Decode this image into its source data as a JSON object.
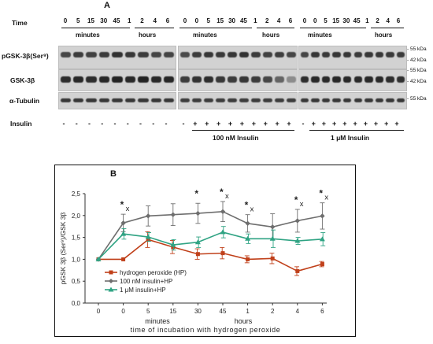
{
  "panel_a": {
    "letter": "A",
    "time_label": "Time",
    "time_groups": [
      [
        "0",
        "5",
        "15",
        "30",
        "45",
        "1",
        "2",
        "4",
        "6"
      ],
      [
        "0",
        "0",
        "5",
        "15",
        "30",
        "45",
        "1",
        "2",
        "4",
        "6"
      ],
      [
        "0",
        "0",
        "5",
        "15",
        "30",
        "45",
        "1",
        "2",
        "4",
        "6"
      ]
    ],
    "minutes_label": "minutes",
    "hours_label": "hours",
    "row_labels": [
      "pGSK-3β(Ser⁹)",
      "GSK-3β",
      "α-Tubulin"
    ],
    "kda_labels": [
      "- 55 kDa",
      "- 42 kDa",
      "- 55 kDa",
      "- 42 kDa",
      "- 55 kDa"
    ],
    "insulin_label": "Insulin",
    "insulin_signs": [
      [
        "-",
        "-",
        "-",
        "-",
        "-",
        "-",
        "-",
        "-",
        "-"
      ],
      [
        "-",
        "+",
        "+",
        "+",
        "+",
        "+",
        "+",
        "+",
        "+",
        "+"
      ],
      [
        "-",
        "+",
        "+",
        "+",
        "+",
        "+",
        "+",
        "+",
        "+",
        "+"
      ]
    ],
    "condition_labels": [
      "100 nM Insulin",
      "1 μM Insulin"
    ]
  },
  "panel_b": {
    "letter": "B"
  },
  "chart_data": {
    "type": "line",
    "categories": [
      "0",
      "0",
      "5",
      "15",
      "30",
      "45",
      "1",
      "2",
      "4",
      "6"
    ],
    "xlabel_line1": "minutes",
    "xlabel_hours": "hours",
    "xlabel_line2": "time of incubation with hydrogen peroxide",
    "ylabel": "pGSK 3β (Ser⁹)/GSK 3β",
    "ylim": [
      0,
      2.5
    ],
    "yticks": [
      "0,0",
      "0,5",
      "1,0",
      "1,5",
      "2,0",
      "2,5"
    ],
    "series": [
      {
        "name": "hydrogen peroxide (HP)",
        "color": "#c0401a",
        "marker": "square",
        "values": [
          1.0,
          1.0,
          1.45,
          1.28,
          1.12,
          1.14,
          1.0,
          1.02,
          0.73,
          0.89
        ],
        "errors": [
          0,
          0,
          0.18,
          0.15,
          0.12,
          0.13,
          0.08,
          0.12,
          0.1,
          0.06
        ]
      },
      {
        "name": "100 nM insulin+HP",
        "color": "#6e6e6e",
        "marker": "diamond",
        "values": [
          1.0,
          1.83,
          1.99,
          2.02,
          2.05,
          2.09,
          1.82,
          1.74,
          1.88,
          1.99
        ],
        "errors": [
          0,
          0.2,
          0.23,
          0.25,
          0.23,
          0.23,
          0.2,
          0.3,
          0.26,
          0.3
        ]
      },
      {
        "name": "1 μM insulin+HP",
        "color": "#2fa383",
        "marker": "triangle",
        "values": [
          1.0,
          1.58,
          1.51,
          1.33,
          1.39,
          1.62,
          1.47,
          1.47,
          1.42,
          1.46
        ],
        "errors": [
          0,
          0.12,
          0.1,
          0.12,
          0.12,
          0.13,
          0.11,
          0.2,
          0.08,
          0.15
        ]
      }
    ],
    "annotations": [
      {
        "index": 1,
        "text": "*x"
      },
      {
        "index": 4,
        "text": "*"
      },
      {
        "index": 5,
        "text": "*x"
      },
      {
        "index": 6,
        "text": "*x"
      },
      {
        "index": 8,
        "text": "*x"
      },
      {
        "index": 9,
        "text": "*x"
      }
    ],
    "legend_position": "bottom-left",
    "grid": false
  }
}
